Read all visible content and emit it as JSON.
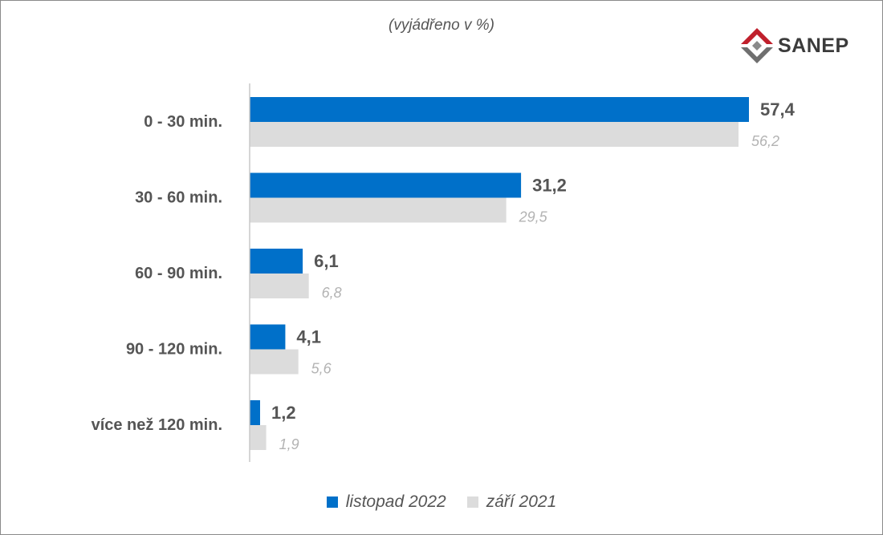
{
  "subtitle": "(vyjádřeno v %)",
  "logo": {
    "text": "SANEP",
    "icon": "sanep-logo-icon"
  },
  "colors": {
    "current": "#0070c9",
    "previous": "#dcdcdc",
    "text": "#555555",
    "previous_text": "#b3b3b3"
  },
  "chart_data": {
    "type": "bar",
    "orientation": "horizontal",
    "categories": [
      "0 - 30 min.",
      "30 - 60 min.",
      "60 - 90 min.",
      "90 - 120 min.",
      "více než 120 min."
    ],
    "series": [
      {
        "name": "listopad 2022",
        "values": [
          57.4,
          31.2,
          6.1,
          4.1,
          1.2
        ],
        "labels": [
          "57,4",
          "31,2",
          "6,1",
          "4,1",
          "1,2"
        ]
      },
      {
        "name": "září 2021",
        "values": [
          56.2,
          29.5,
          6.8,
          5.6,
          1.9
        ],
        "labels": [
          "56,2",
          "29,5",
          "6,8",
          "5,6",
          "1,9"
        ]
      }
    ],
    "xlim": [
      0,
      60
    ],
    "grid": false,
    "legend": "bottom"
  }
}
